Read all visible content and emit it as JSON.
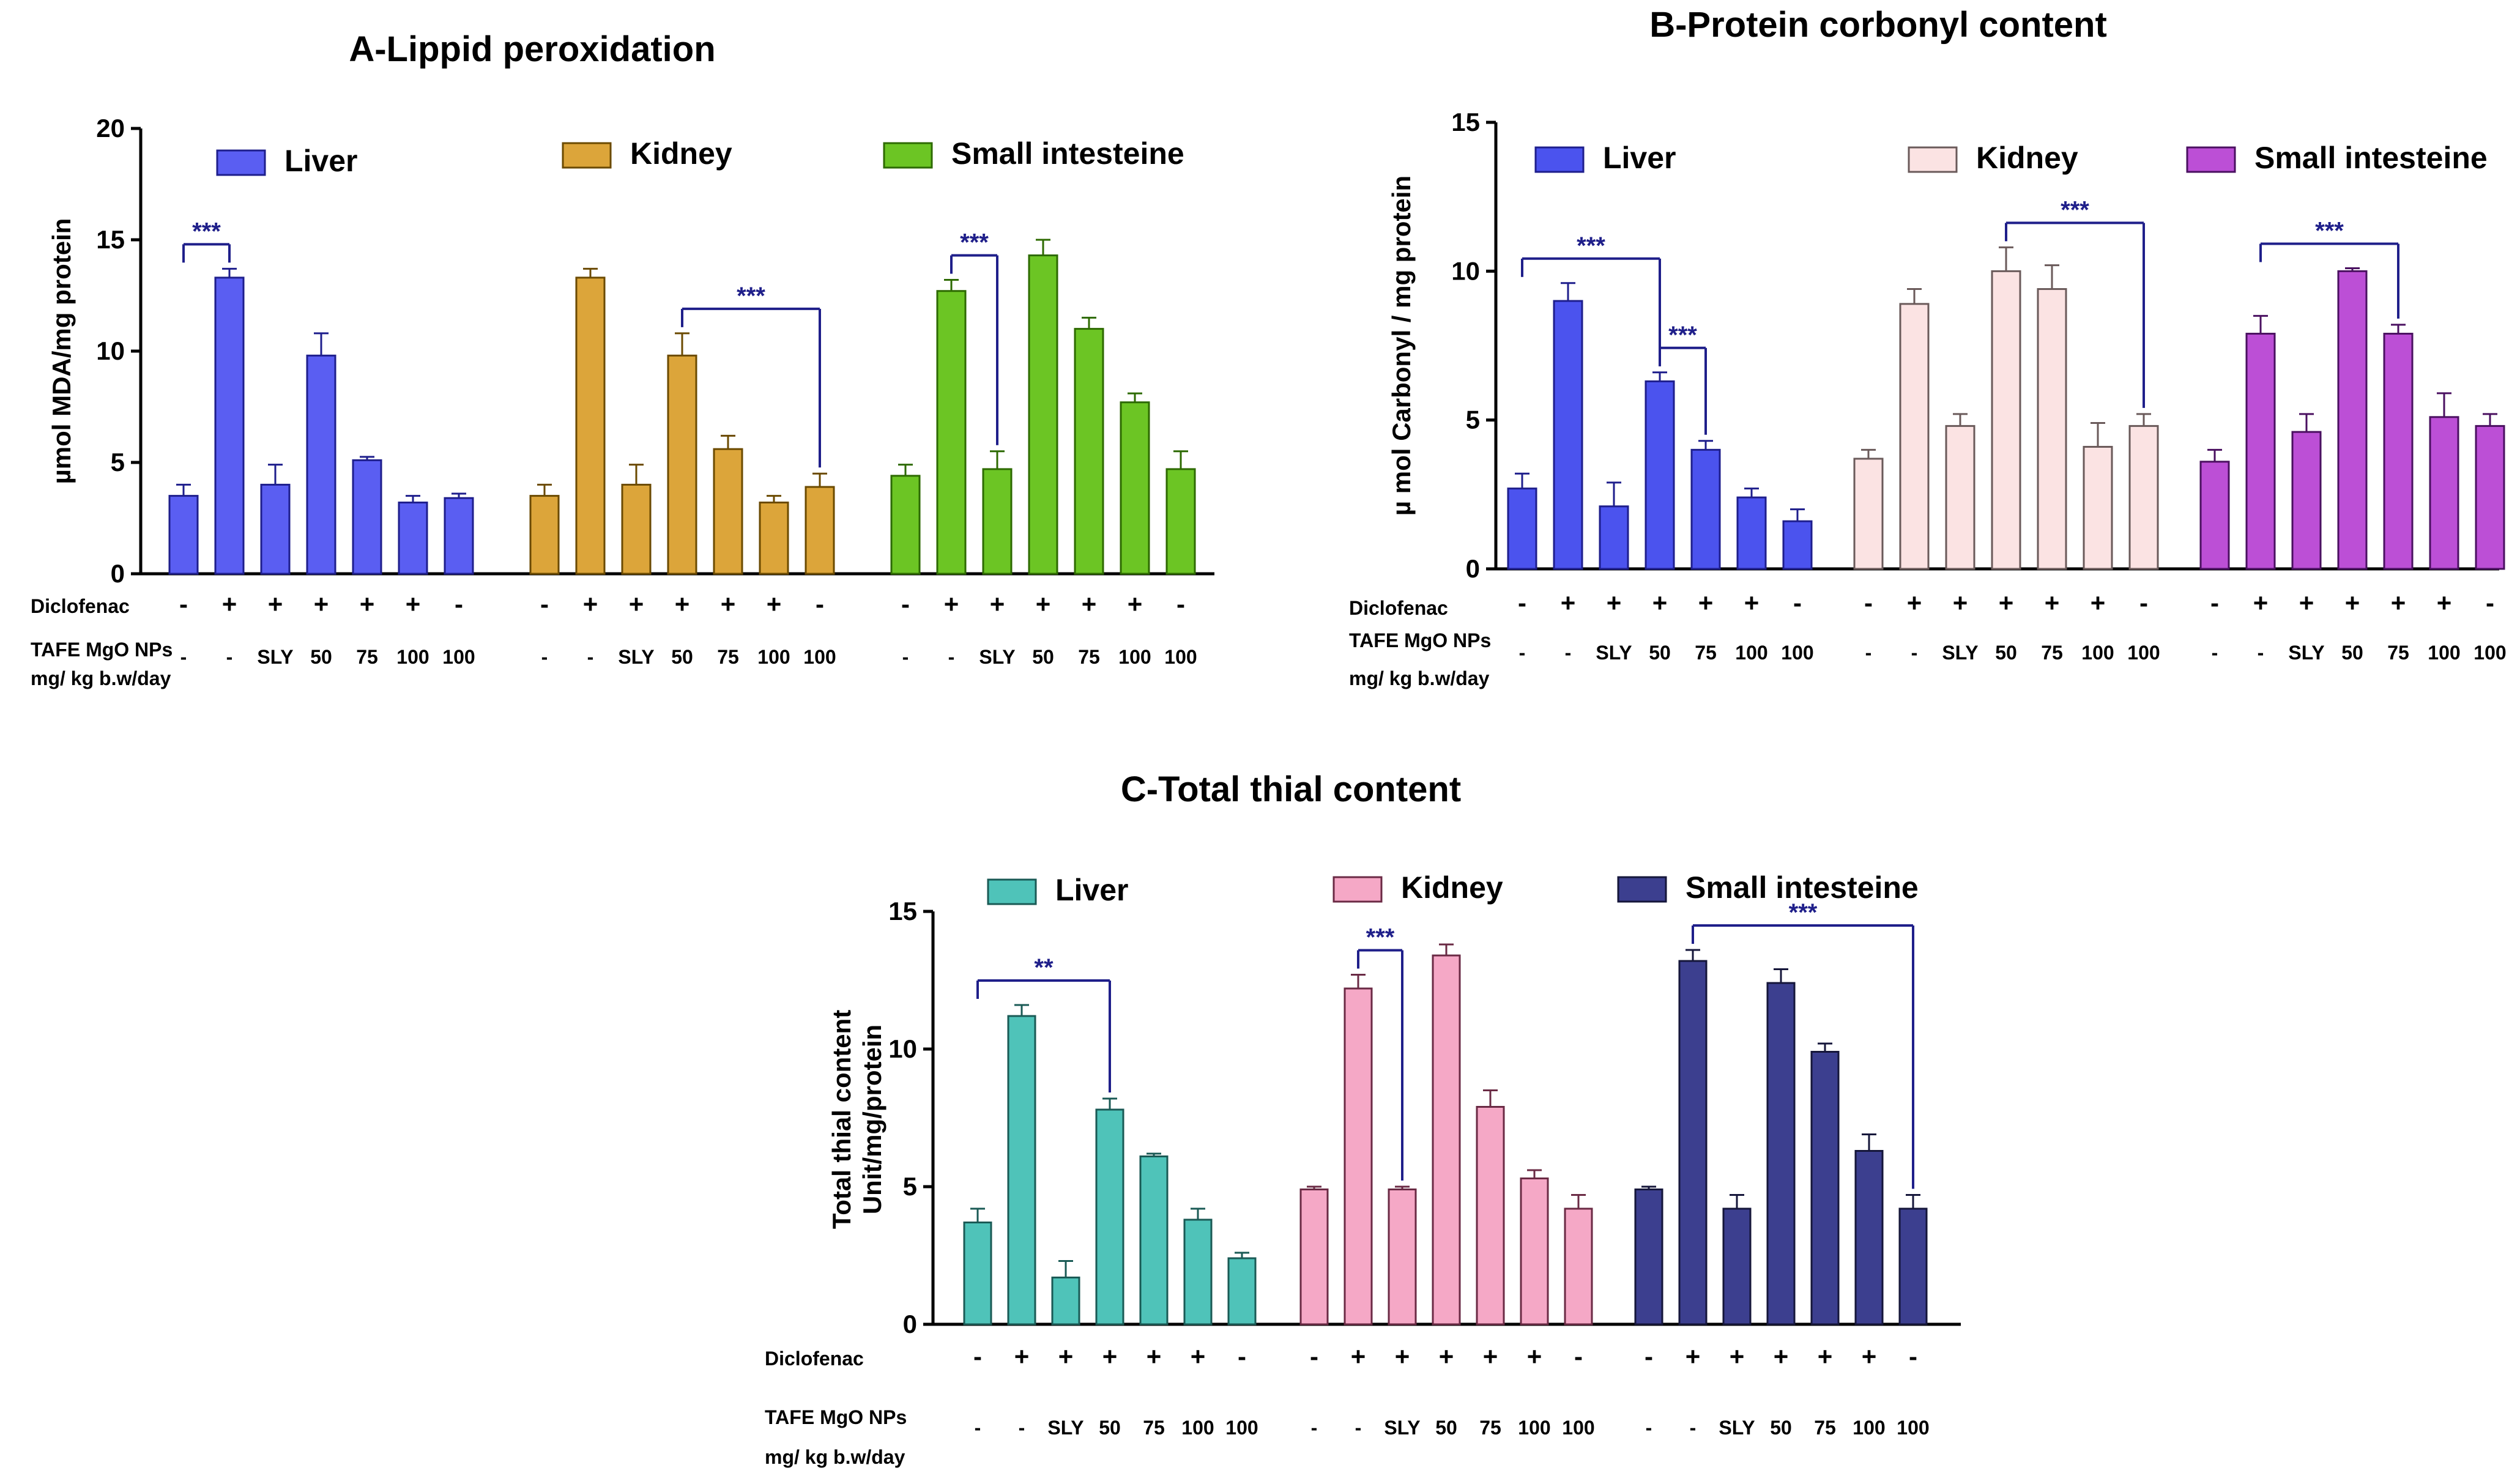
{
  "chart_data": [
    {
      "type": "bar",
      "title": "A-Lippid peroxidation",
      "ylabel": "µmol MDA/mg protein",
      "ylim": [
        0,
        20
      ],
      "yticks": [
        "0",
        "5",
        "10",
        "15",
        "20"
      ],
      "row_labels": [
        "Diclofenac",
        "TAFE MgO NPs",
        "mg/ kg b.w/day"
      ],
      "diclofenac": [
        "-",
        "+",
        "+",
        "+",
        "+",
        "+",
        "-"
      ],
      "dose": [
        "-",
        "-",
        "SLY",
        "50",
        "75",
        "100",
        "100"
      ],
      "series": [
        {
          "name": "Liver",
          "color": "#5a5ef2",
          "edge": "#1e1e8c",
          "values": [
            3.5,
            13.3,
            4.0,
            9.8,
            5.1,
            3.2,
            3.4
          ],
          "errors": [
            0.5,
            0.4,
            0.9,
            1.0,
            0.15,
            0.3,
            0.2
          ]
        },
        {
          "name": "Kidney",
          "color": "#dca53a",
          "edge": "#6b4a00",
          "values": [
            3.5,
            13.3,
            4.0,
            9.8,
            5.6,
            3.2,
            3.9
          ],
          "errors": [
            0.5,
            0.4,
            0.9,
            1.0,
            0.6,
            0.3,
            0.6
          ]
        },
        {
          "name": "Small intesteine",
          "color": "#6cc524",
          "edge": "#2d6a00",
          "values": [
            4.4,
            12.7,
            4.7,
            14.3,
            11.0,
            7.7,
            4.7
          ],
          "errors": [
            0.5,
            0.5,
            0.8,
            0.7,
            0.5,
            0.4,
            0.8
          ]
        }
      ],
      "significance": [
        {
          "label": "***",
          "series": 0,
          "from": 0,
          "to": 1
        },
        {
          "label": "***",
          "series": 1,
          "from": 3,
          "to": 6
        },
        {
          "label": "***",
          "series": 2,
          "from": 1,
          "to": 2
        }
      ]
    },
    {
      "type": "bar",
      "title": "B-Protein corbonyl content",
      "ylabel": "µ mol Carbonyl / mg protein",
      "ylim": [
        0,
        15
      ],
      "yticks": [
        "0",
        "5",
        "10",
        "15"
      ],
      "row_labels": [
        "Diclofenac",
        "TAFE MgO NPs",
        "mg/ kg b.w/day"
      ],
      "diclofenac": [
        "-",
        "+",
        "+",
        "+",
        "+",
        "+",
        "-"
      ],
      "dose": [
        "-",
        "-",
        "SLY",
        "50",
        "75",
        "100",
        "100"
      ],
      "series": [
        {
          "name": "Liver",
          "color": "#4b53ee",
          "edge": "#1e1e8c",
          "values": [
            2.7,
            9.0,
            2.1,
            6.3,
            4.0,
            2.4,
            1.6
          ],
          "errors": [
            0.5,
            0.6,
            0.8,
            0.3,
            0.3,
            0.3,
            0.4
          ]
        },
        {
          "name": "Kidney",
          "color": "#fbe3e3",
          "edge": "#6a5a5a",
          "values": [
            3.7,
            8.9,
            4.8,
            10.0,
            9.4,
            4.1,
            4.8
          ],
          "errors": [
            0.3,
            0.5,
            0.4,
            0.8,
            0.8,
            0.8,
            0.4
          ]
        },
        {
          "name": "Small intesteine",
          "color": "#bc4fd6",
          "edge": "#4a1060",
          "values": [
            3.6,
            7.9,
            4.6,
            10.0,
            7.9,
            5.1,
            4.8
          ],
          "errors": [
            0.4,
            0.6,
            0.6,
            0.1,
            0.3,
            0.8,
            0.4
          ]
        }
      ],
      "significance": [
        {
          "label": "***",
          "series": 0,
          "from": 0,
          "to": 3
        },
        {
          "label": "***",
          "series": 0,
          "from": 3,
          "to": 4
        },
        {
          "label": "***",
          "series": 1,
          "from": 3,
          "to": 6
        },
        {
          "label": "***",
          "series": 2,
          "from": 1,
          "to": 4
        }
      ]
    },
    {
      "type": "bar",
      "title": "C-Total thial content",
      "ylabel": "Total thial content",
      "ylabel2": "Unit/mg/protein",
      "ylim": [
        0,
        15
      ],
      "yticks": [
        "0",
        "5",
        "10",
        "15"
      ],
      "row_labels": [
        "Diclofenac",
        "TAFE MgO NPs",
        "mg/ kg b.w/day"
      ],
      "diclofenac": [
        "-",
        "+",
        "+",
        "+",
        "+",
        "+",
        "-"
      ],
      "dose": [
        "-",
        "-",
        "SLY",
        "50",
        "75",
        "100",
        "100"
      ],
      "series": [
        {
          "name": "Liver",
          "color": "#4fc3b9",
          "edge": "#1a5a55",
          "values": [
            3.7,
            11.2,
            1.7,
            7.8,
            6.1,
            3.8,
            2.4
          ],
          "errors": [
            0.5,
            0.4,
            0.6,
            0.4,
            0.1,
            0.4,
            0.2
          ]
        },
        {
          "name": "Kidney",
          "color": "#f5a8c6",
          "edge": "#6a2a44",
          "values": [
            4.9,
            12.2,
            4.9,
            13.4,
            7.9,
            5.3,
            4.2
          ],
          "errors": [
            0.1,
            0.5,
            0.1,
            0.4,
            0.6,
            0.3,
            0.5
          ]
        },
        {
          "name": "Small intesteine",
          "color": "#3c3f8f",
          "edge": "#15163a",
          "values": [
            4.9,
            13.2,
            4.2,
            12.4,
            9.9,
            6.3,
            4.2
          ],
          "errors": [
            0.1,
            0.4,
            0.5,
            0.5,
            0.3,
            0.6,
            0.5
          ]
        }
      ],
      "significance": [
        {
          "label": "**",
          "series": 0,
          "from": 0,
          "to": 3
        },
        {
          "label": "***",
          "series": 1,
          "from": 1,
          "to": 2
        },
        {
          "label": "***",
          "series": 2,
          "from": 1,
          "to": 6
        }
      ]
    }
  ]
}
